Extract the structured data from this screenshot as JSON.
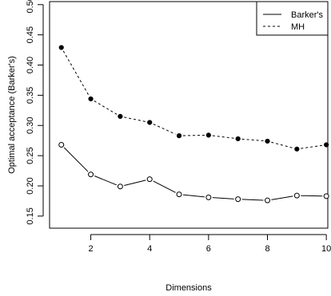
{
  "chart_data": {
    "type": "line",
    "xlabel": "Dimensions",
    "ylabel": "Optimal acceptance (Barker's)",
    "xlim": [
      0.6,
      10.05
    ],
    "ylim": [
      0.13,
      0.505
    ],
    "x_ticks": [
      2,
      4,
      6,
      8,
      10
    ],
    "y_ticks": [
      0.15,
      0.2,
      0.25,
      0.3,
      0.35,
      0.4,
      0.45,
      0.5
    ],
    "y_tick_labels": [
      "0.15",
      "0.20",
      "0.25",
      "0.30",
      "0.35",
      "0.40",
      "0.45",
      "0.50"
    ],
    "grid": false,
    "legend_position": "top-right",
    "x": [
      1,
      2,
      3,
      4,
      5,
      6,
      7,
      8,
      9,
      10
    ],
    "series": [
      {
        "name": "Barker's",
        "line": "solid",
        "marker": "open-circle",
        "values": [
          0.268,
          0.219,
          0.199,
          0.211,
          0.186,
          0.181,
          0.178,
          0.176,
          0.184,
          0.183
        ]
      },
      {
        "name": "MH",
        "line": "dashed",
        "marker": "filled-circle",
        "values": [
          0.429,
          0.344,
          0.315,
          0.305,
          0.283,
          0.284,
          0.278,
          0.274,
          0.261,
          0.268
        ]
      }
    ]
  }
}
